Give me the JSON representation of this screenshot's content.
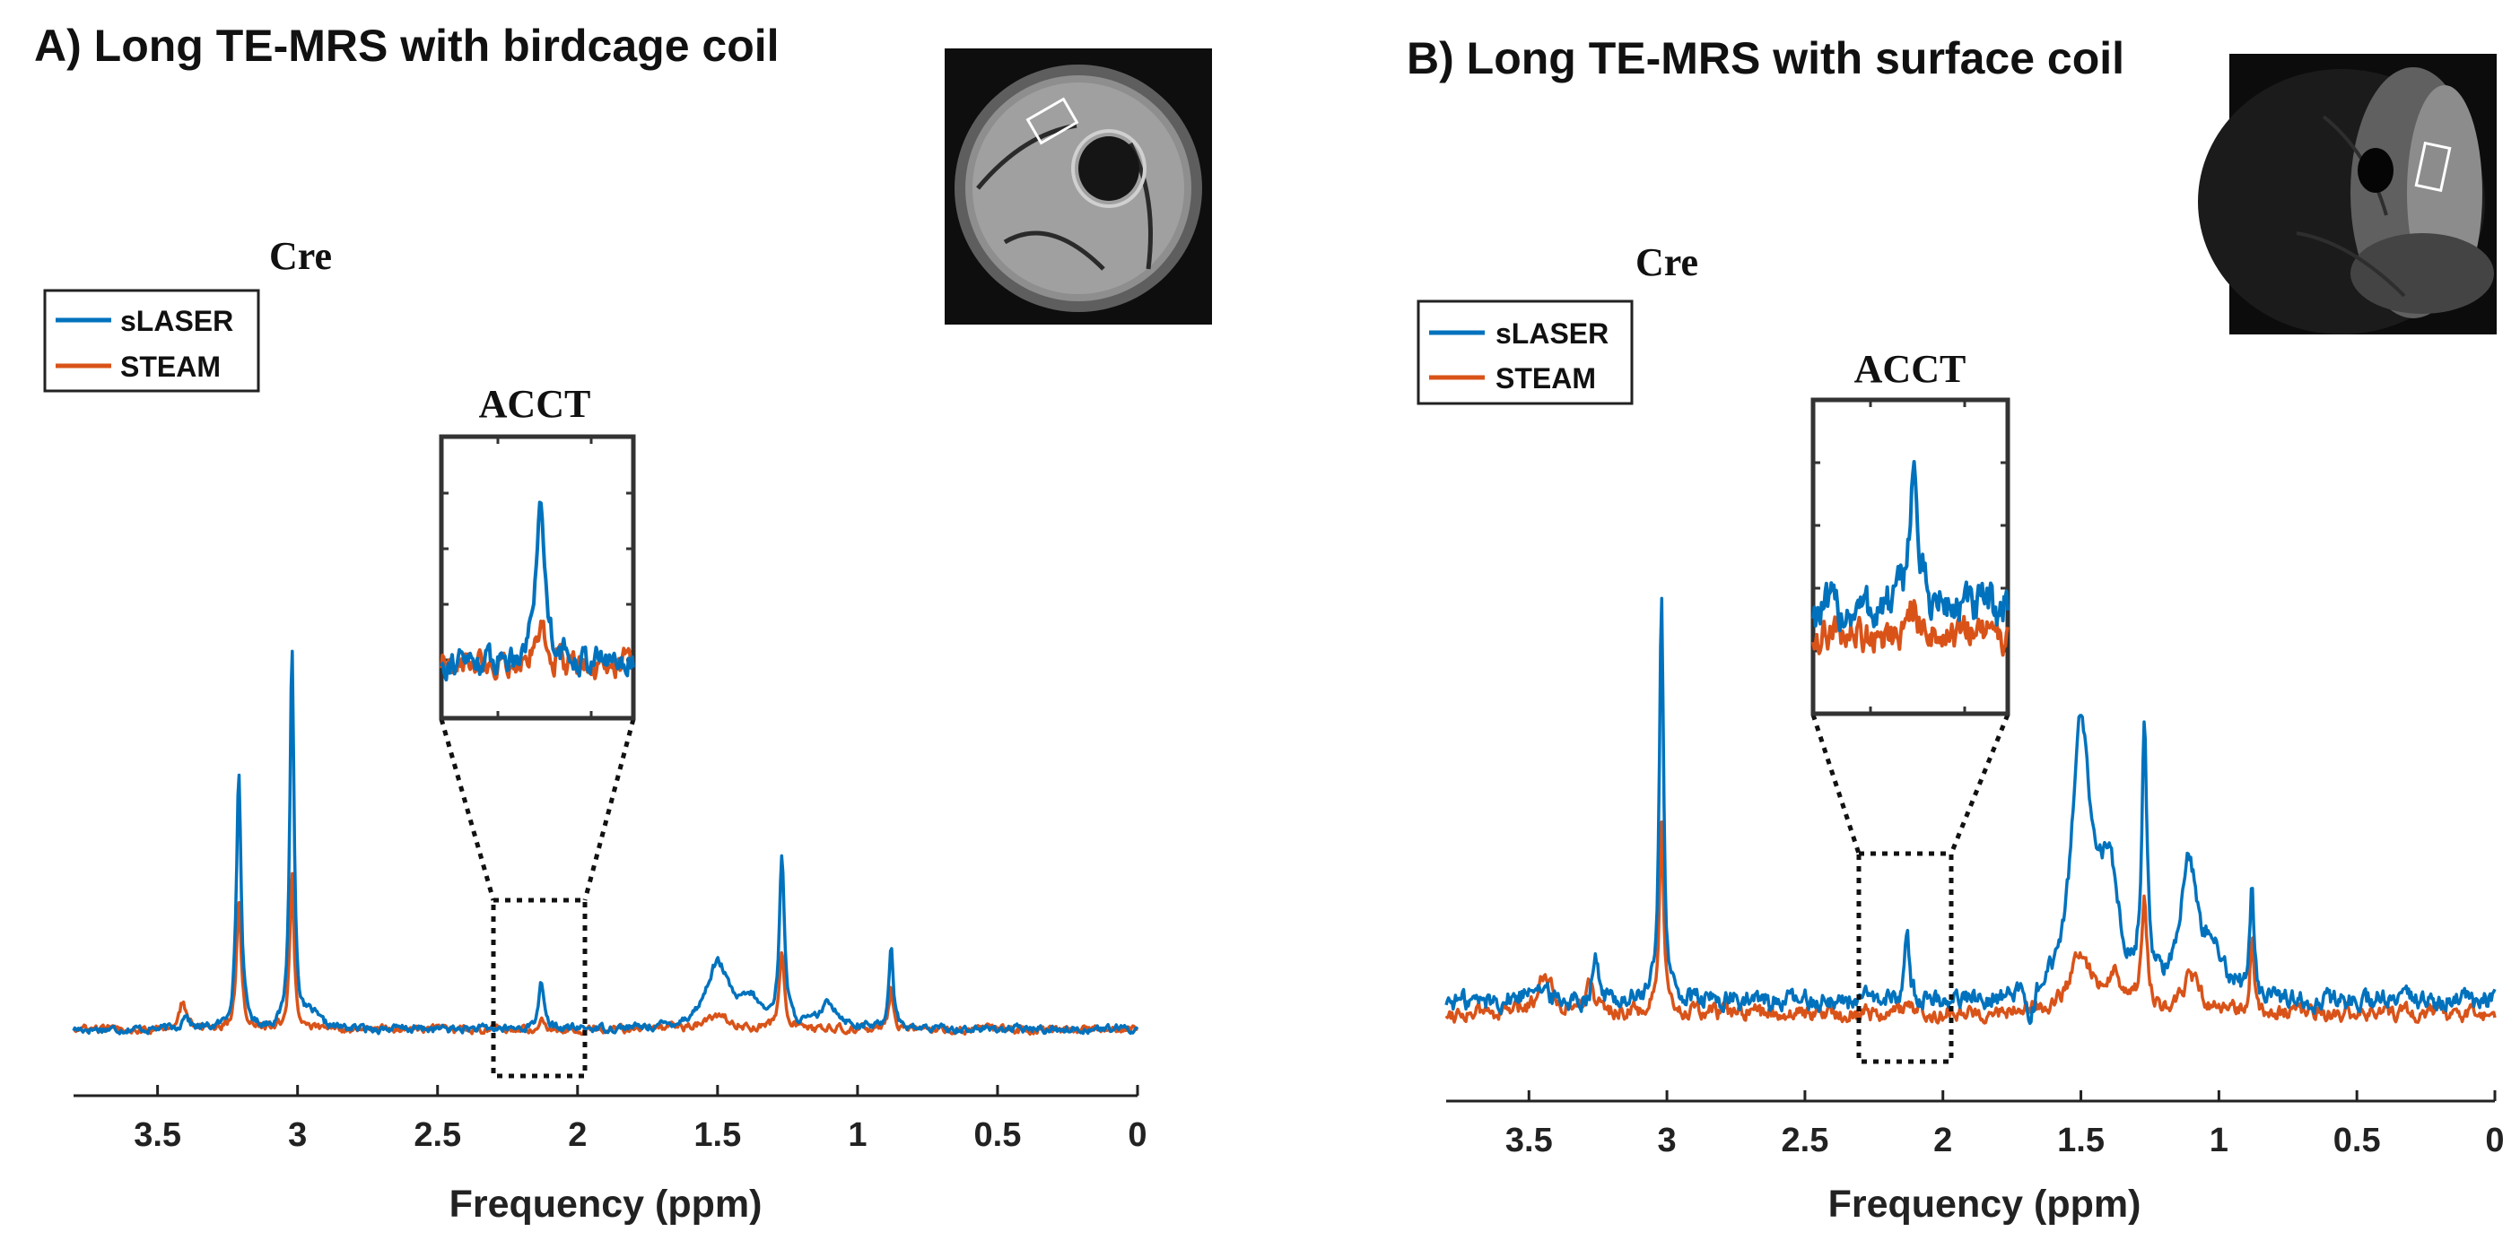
{
  "colors": {
    "slaser": "#0072BD",
    "steam": "#D95319",
    "axis": "#222222",
    "inset_border": "#333333"
  },
  "chart_data": [
    {
      "type": "line",
      "title": "A) Long TE-MRS with birdcage coil",
      "xlabel": "Frequency (ppm)",
      "xlim": [
        3.8,
        0
      ],
      "x_reversed": true,
      "xticks": [
        3.5,
        3,
        2.5,
        2,
        1.5,
        1,
        0.5,
        0
      ],
      "xtick_labels": [
        "3.5",
        "3",
        "2.5",
        "2",
        "1.5",
        "1",
        "0.5",
        "0"
      ],
      "legend": [
        "sLASER",
        "STEAM"
      ],
      "legend_position": "top-left",
      "annotations": [
        {
          "text": "Cre",
          "x": 3.02
        },
        {
          "text": "ACCT",
          "target": "inset"
        }
      ],
      "mri_image": "axial calf MRI with white voxel box (birdcage coil)",
      "inset": {
        "label": "ACCT",
        "x_range": [
          2.3,
          1.97
        ],
        "highlight_ppm": 2.13
      },
      "series": [
        {
          "name": "sLASER",
          "baseline": 0.0,
          "noise": 0.012,
          "peaks": [
            {
              "ppm": 3.4,
              "height": 0.06,
              "width": 0.012
            },
            {
              "ppm": 3.21,
              "height": 0.95,
              "width": 0.01
            },
            {
              "ppm": 3.02,
              "height": 1.41,
              "width": 0.009
            },
            {
              "ppm": 2.95,
              "height": 0.05,
              "width": 0.03
            },
            {
              "ppm": 2.13,
              "height": 0.19,
              "width": 0.01
            },
            {
              "ppm": 1.5,
              "height": 0.24,
              "width": 0.05
            },
            {
              "ppm": 1.38,
              "height": 0.09,
              "width": 0.04
            },
            {
              "ppm": 1.27,
              "height": 0.62,
              "width": 0.011
            },
            {
              "ppm": 1.1,
              "height": 0.09,
              "width": 0.04
            },
            {
              "ppm": 0.88,
              "height": 0.32,
              "width": 0.009
            }
          ]
        },
        {
          "name": "STEAM",
          "baseline": 0.0,
          "noise": 0.012,
          "peaks": [
            {
              "ppm": 3.41,
              "height": 0.1,
              "width": 0.015
            },
            {
              "ppm": 3.21,
              "height": 0.48,
              "width": 0.01
            },
            {
              "ppm": 3.02,
              "height": 0.58,
              "width": 0.009
            },
            {
              "ppm": 2.13,
              "height": 0.05,
              "width": 0.01
            },
            {
              "ppm": 1.5,
              "height": 0.05,
              "width": 0.05
            },
            {
              "ppm": 1.27,
              "height": 0.28,
              "width": 0.011
            },
            {
              "ppm": 0.88,
              "height": 0.16,
              "width": 0.009
            }
          ]
        }
      ]
    },
    {
      "type": "line",
      "title": "B) Long TE-MRS with surface coil",
      "xlabel": "Frequency (ppm)",
      "xlim": [
        3.8,
        0
      ],
      "x_reversed": true,
      "xticks": [
        3.5,
        3,
        2.5,
        2,
        1.5,
        1,
        0.5,
        0
      ],
      "xtick_labels": [
        "3.5",
        "3",
        "2.5",
        "2",
        "1.5",
        "1",
        "0.5",
        "0"
      ],
      "legend": [
        "sLASER",
        "STEAM"
      ],
      "legend_position": "top-left",
      "annotations": [
        {
          "text": "Cre",
          "x": 3.02
        },
        {
          "text": "ACCT",
          "target": "inset"
        }
      ],
      "mri_image": "axial calf MRI with white voxel box (surface coil)",
      "inset": {
        "label": "ACCT",
        "x_range": [
          2.3,
          1.97
        ],
        "highlight_ppm": 2.13
      },
      "series": [
        {
          "name": "sLASER",
          "baseline": 0.04,
          "noise": 0.028,
          "peaks": [
            {
              "ppm": 3.48,
              "height": 0.07,
              "width": 0.03
            },
            {
              "ppm": 3.26,
              "height": 0.16,
              "width": 0.012
            },
            {
              "ppm": 3.02,
              "height": 1.38,
              "width": 0.009
            },
            {
              "ppm": 2.13,
              "height": 0.24,
              "width": 0.009
            },
            {
              "ppm": 1.68,
              "height": -0.09,
              "width": 0.015
            },
            {
              "ppm": 1.5,
              "height": 0.9,
              "width": 0.04
            },
            {
              "ppm": 1.4,
              "height": 0.4,
              "width": 0.04
            },
            {
              "ppm": 1.27,
              "height": 0.86,
              "width": 0.011
            },
            {
              "ppm": 1.11,
              "height": 0.46,
              "width": 0.035
            },
            {
              "ppm": 1.02,
              "height": 0.18,
              "width": 0.04
            },
            {
              "ppm": 0.88,
              "height": 0.4,
              "width": 0.008
            }
          ]
        },
        {
          "name": "STEAM",
          "baseline": 0.0,
          "noise": 0.022,
          "peaks": [
            {
              "ppm": 3.44,
              "height": 0.14,
              "width": 0.03
            },
            {
              "ppm": 3.28,
              "height": 0.1,
              "width": 0.02
            },
            {
              "ppm": 3.02,
              "height": 0.62,
              "width": 0.009
            },
            {
              "ppm": 2.13,
              "height": 0.05,
              "width": 0.01
            },
            {
              "ppm": 1.5,
              "height": 0.2,
              "width": 0.045
            },
            {
              "ppm": 1.38,
              "height": 0.12,
              "width": 0.03
            },
            {
              "ppm": 1.27,
              "height": 0.37,
              "width": 0.012
            },
            {
              "ppm": 1.1,
              "height": 0.12,
              "width": 0.035
            },
            {
              "ppm": 0.88,
              "height": 0.25,
              "width": 0.009
            }
          ]
        }
      ]
    }
  ]
}
